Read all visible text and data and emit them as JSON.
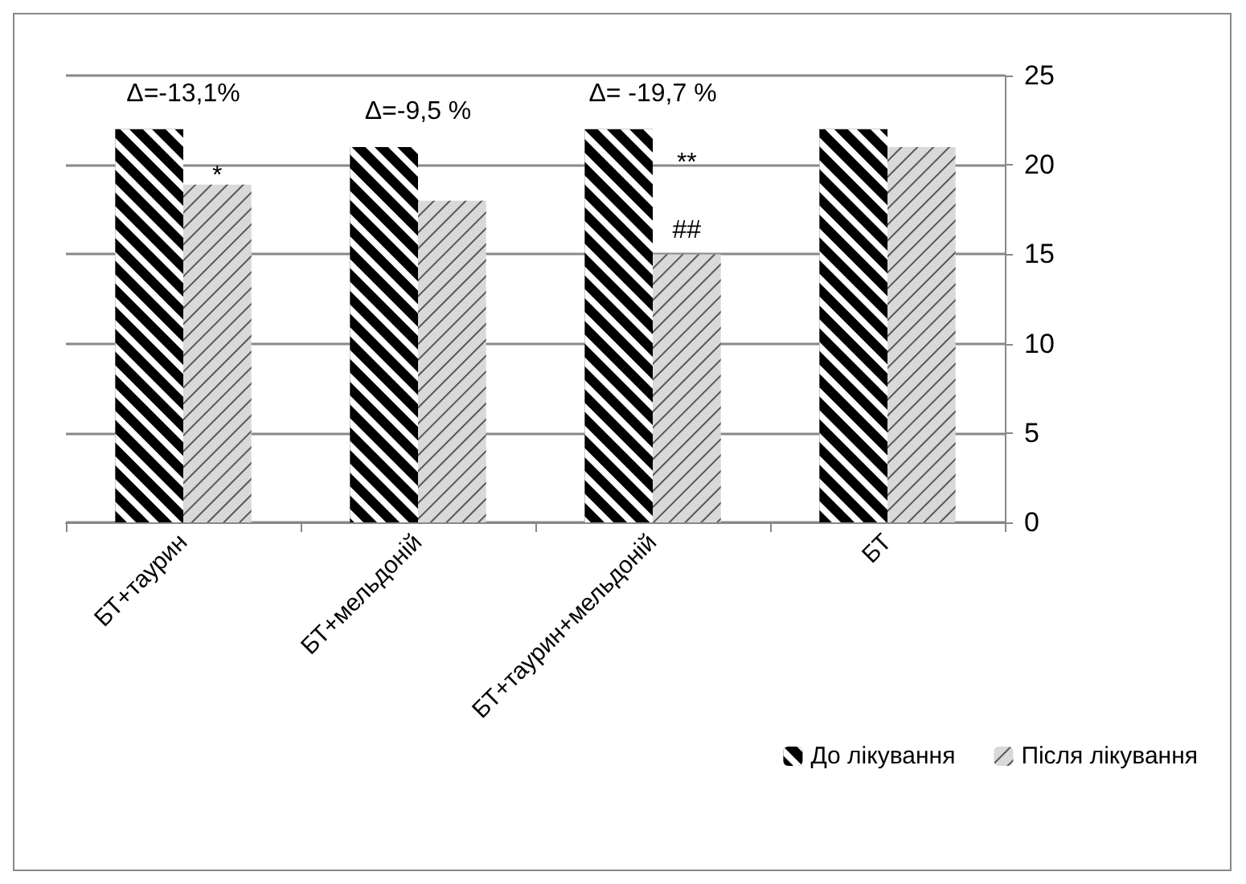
{
  "chart_data": {
    "type": "bar",
    "categories": [
      "БТ+таурин",
      "БТ+мельдоній",
      "БТ+таурин+мельдоній",
      "БТ"
    ],
    "series": [
      {
        "name": "До лікування",
        "color": "#000000",
        "values": [
          22,
          21,
          22,
          22
        ]
      },
      {
        "name": "Після лікування",
        "color": "#d9d9d9",
        "values": [
          18.9,
          18,
          15,
          21
        ]
      }
    ],
    "ylim": [
      0,
      25
    ],
    "yticks": [
      0,
      5,
      10,
      15,
      20,
      25
    ],
    "grid": "y",
    "legend": "bottom right",
    "annotations": [
      {
        "text": "Δ=-13,1%",
        "x": "БТ+таурин",
        "y": 22
      },
      {
        "text": "*",
        "x": "БТ+таурин",
        "y": 19.4
      },
      {
        "text": "Δ=-9,5 %",
        "x": "БТ+мельдоній",
        "y": 21
      },
      {
        "text": "Δ= -19,7 %",
        "x": "БТ+таурин+мельдоній",
        "y": 22
      },
      {
        "text": "**",
        "x": "БТ+таурин+мельдоній",
        "y": 20.1
      },
      {
        "text": "##",
        "x": "БТ+таурин+мельдоній",
        "y": 16.3
      }
    ]
  }
}
